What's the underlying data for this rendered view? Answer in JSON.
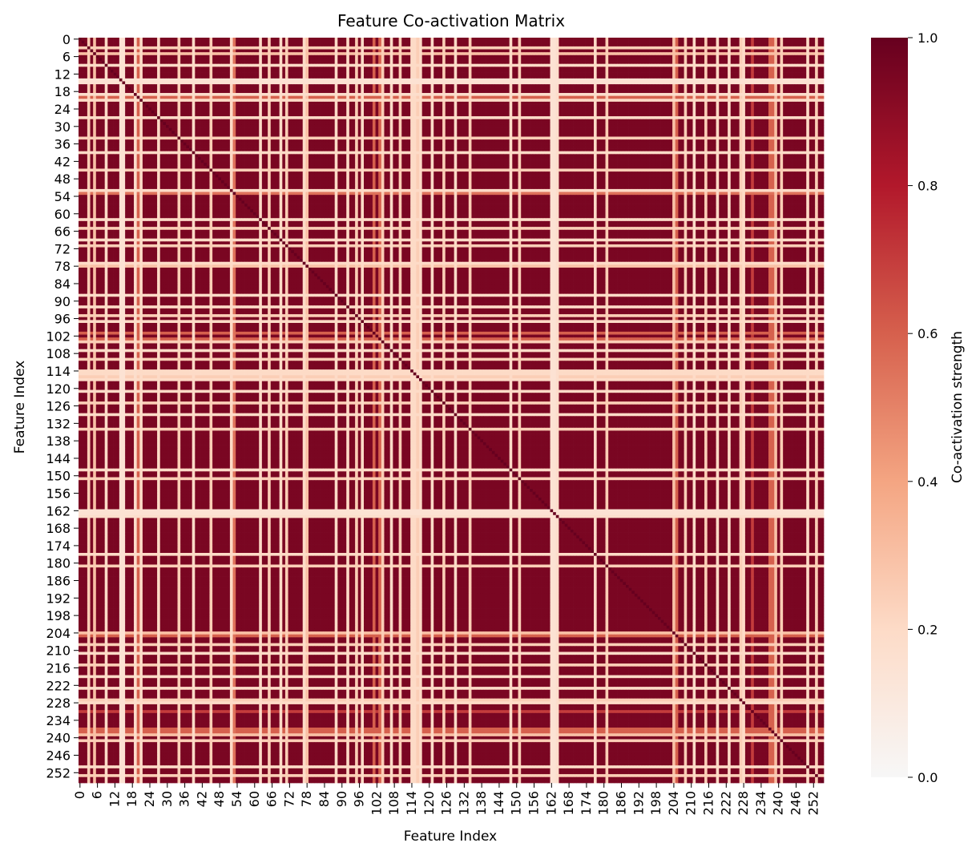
{
  "chart_data": {
    "type": "heatmap",
    "title": "Feature Co-activation Matrix",
    "xlabel": "Feature Index",
    "ylabel": "Feature Index",
    "n": 256,
    "x_tick_labels": [
      0,
      6,
      12,
      18,
      24,
      30,
      36,
      42,
      48,
      54,
      60,
      66,
      72,
      78,
      84,
      90,
      96,
      102,
      108,
      114,
      120,
      126,
      132,
      138,
      144,
      150,
      156,
      162,
      168,
      174,
      180,
      186,
      192,
      198,
      204,
      210,
      216,
      222,
      228,
      234,
      240,
      246,
      252
    ],
    "y_tick_labels": [
      0,
      6,
      12,
      18,
      24,
      30,
      36,
      42,
      48,
      54,
      60,
      66,
      72,
      78,
      84,
      90,
      96,
      102,
      108,
      114,
      120,
      126,
      132,
      138,
      144,
      150,
      156,
      162,
      168,
      174,
      180,
      186,
      192,
      198,
      204,
      210,
      216,
      222,
      228,
      234,
      240,
      246,
      252
    ],
    "colorbar": {
      "label": "Co-activation strength",
      "colormap": "RdBu_r (upper half)",
      "range": [
        0,
        1
      ],
      "ticks": [
        "0.0",
        "0.2",
        "0.4",
        "0.6",
        "0.8",
        "1.0"
      ]
    },
    "base_value": 0.95,
    "diagonal_value": 1.0,
    "low_features": [
      {
        "index": 3,
        "value": 0.25
      },
      {
        "index": 5,
        "value": 0.3
      },
      {
        "index": 9,
        "value": 0.2
      },
      {
        "index": 14,
        "value": 0.15
      },
      {
        "index": 15,
        "value": 0.15
      },
      {
        "index": 19,
        "value": 0.18
      },
      {
        "index": 20,
        "value": 0.6
      },
      {
        "index": 21,
        "value": 0.2
      },
      {
        "index": 27,
        "value": 0.2
      },
      {
        "index": 34,
        "value": 0.25
      },
      {
        "index": 39,
        "value": 0.2
      },
      {
        "index": 45,
        "value": 0.25
      },
      {
        "index": 52,
        "value": 0.2
      },
      {
        "index": 53,
        "value": 0.55
      },
      {
        "index": 62,
        "value": 0.2
      },
      {
        "index": 65,
        "value": 0.25
      },
      {
        "index": 69,
        "value": 0.2
      },
      {
        "index": 71,
        "value": 0.25
      },
      {
        "index": 77,
        "value": 0.2
      },
      {
        "index": 78,
        "value": 0.3
      },
      {
        "index": 88,
        "value": 0.2
      },
      {
        "index": 92,
        "value": 0.2
      },
      {
        "index": 95,
        "value": 0.25
      },
      {
        "index": 97,
        "value": 0.2
      },
      {
        "index": 101,
        "value": 0.6
      },
      {
        "index": 103,
        "value": 0.6
      },
      {
        "index": 104,
        "value": 0.25
      },
      {
        "index": 107,
        "value": 0.2
      },
      {
        "index": 110,
        "value": 0.25
      },
      {
        "index": 114,
        "value": 0.2
      },
      {
        "index": 115,
        "value": 0.2
      },
      {
        "index": 116,
        "value": 0.25
      },
      {
        "index": 117,
        "value": 0.2
      },
      {
        "index": 121,
        "value": 0.2
      },
      {
        "index": 125,
        "value": 0.25
      },
      {
        "index": 129,
        "value": 0.2
      },
      {
        "index": 134,
        "value": 0.25
      },
      {
        "index": 148,
        "value": 0.2
      },
      {
        "index": 151,
        "value": 0.25
      },
      {
        "index": 162,
        "value": 0.15
      },
      {
        "index": 163,
        "value": 0.15
      },
      {
        "index": 164,
        "value": 0.18
      },
      {
        "index": 177,
        "value": 0.2
      },
      {
        "index": 181,
        "value": 0.25
      },
      {
        "index": 204,
        "value": 0.3
      },
      {
        "index": 205,
        "value": 0.6
      },
      {
        "index": 208,
        "value": 0.25
      },
      {
        "index": 211,
        "value": 0.2
      },
      {
        "index": 215,
        "value": 0.25
      },
      {
        "index": 219,
        "value": 0.2
      },
      {
        "index": 223,
        "value": 0.2
      },
      {
        "index": 227,
        "value": 0.25
      },
      {
        "index": 228,
        "value": 0.2
      },
      {
        "index": 231,
        "value": 0.7
      },
      {
        "index": 237,
        "value": 0.6
      },
      {
        "index": 238,
        "value": 0.6
      },
      {
        "index": 239,
        "value": 0.3
      },
      {
        "index": 241,
        "value": 0.25
      },
      {
        "index": 250,
        "value": 0.2
      },
      {
        "index": 253,
        "value": 0.25
      }
    ]
  }
}
